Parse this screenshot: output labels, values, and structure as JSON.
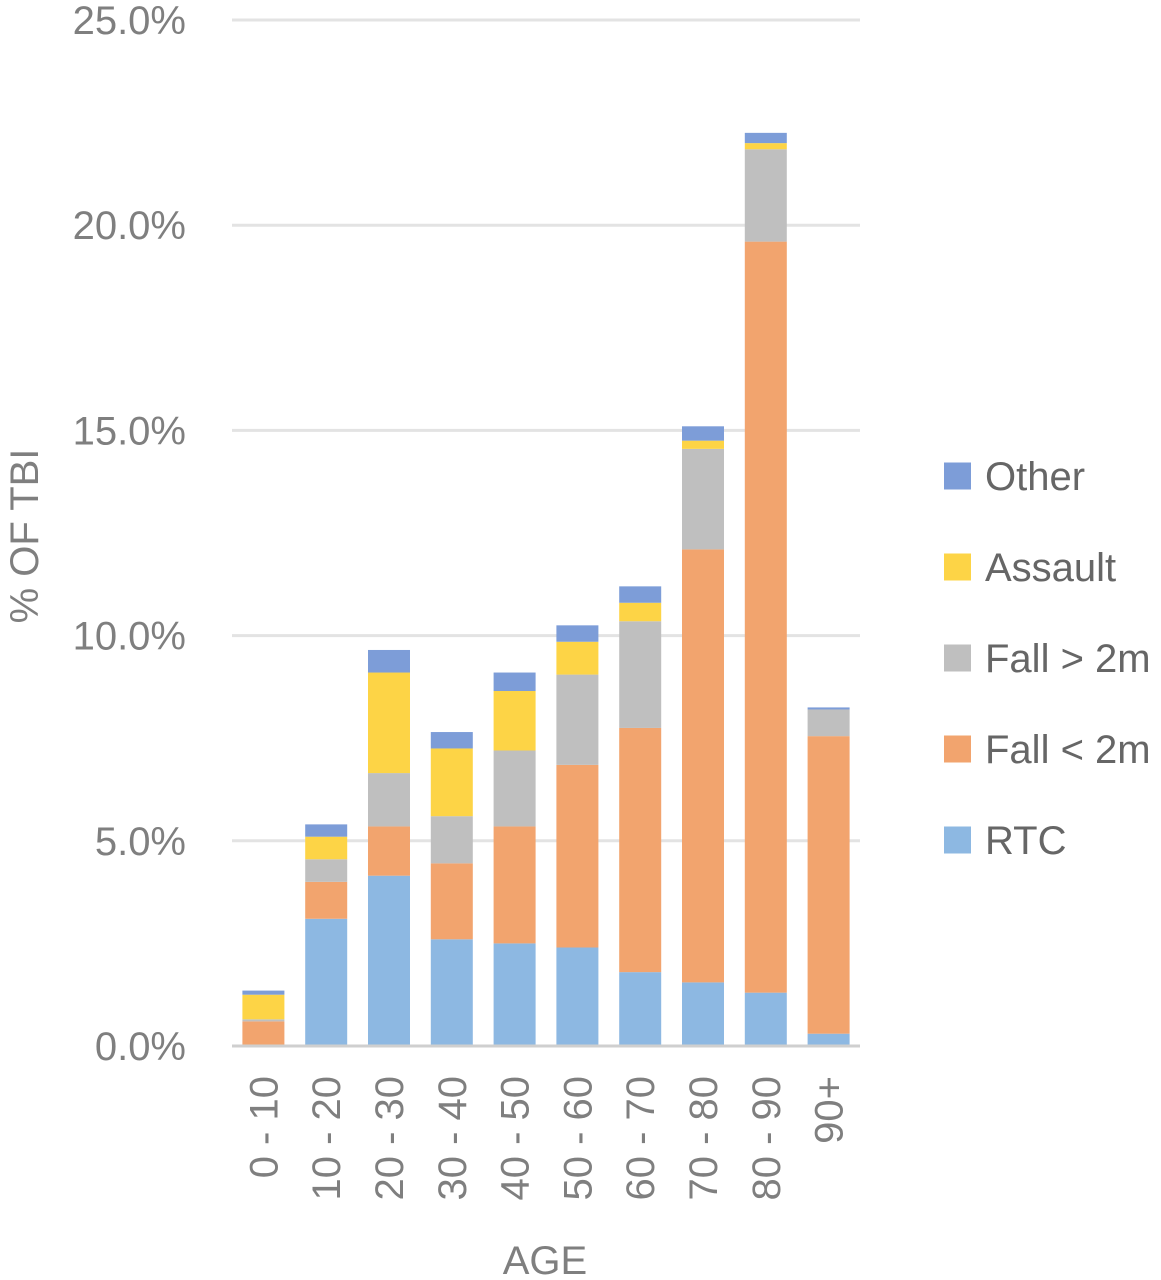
{
  "chart_data": {
    "type": "bar",
    "stacked": true,
    "title": "",
    "xlabel": "AGE",
    "ylabel": "% OF TBI",
    "ylim": [
      0,
      25
    ],
    "y_ticks": [
      "0.0%",
      "5.0%",
      "10.0%",
      "15.0%",
      "20.0%",
      "25.0%"
    ],
    "y_tick_values": [
      0,
      5,
      10,
      15,
      20,
      25
    ],
    "grid": true,
    "legend_position": "right",
    "categories": [
      "0 - 10",
      "10 - 20",
      "20 - 30",
      "30 - 40",
      "40 - 50",
      "50 - 60",
      "60 - 70",
      "70 - 80",
      "80 - 90",
      "90+"
    ],
    "series": [
      {
        "name": "RTC",
        "color": "#8DB8E2",
        "values": [
          0.0,
          3.1,
          4.15,
          2.6,
          2.5,
          2.4,
          1.8,
          1.55,
          1.3,
          0.3
        ]
      },
      {
        "name": "Fall < 2m",
        "color": "#F2A46E",
        "values": [
          0.6,
          0.9,
          1.2,
          1.85,
          2.85,
          4.45,
          5.95,
          10.55,
          18.3,
          7.25
        ]
      },
      {
        "name": "Fall > 2m",
        "color": "#BFBFBF",
        "values": [
          0.05,
          0.55,
          1.3,
          1.15,
          1.85,
          2.2,
          2.6,
          2.45,
          2.25,
          0.65
        ]
      },
      {
        "name": "Assault",
        "color": "#FDD446",
        "values": [
          0.6,
          0.55,
          2.45,
          1.65,
          1.45,
          0.8,
          0.45,
          0.2,
          0.15,
          0.0
        ]
      },
      {
        "name": "Other",
        "color": "#7D9DD8",
        "values": [
          0.1,
          0.3,
          0.55,
          0.4,
          0.45,
          0.4,
          0.4,
          0.35,
          0.25,
          0.05
        ]
      }
    ],
    "legend_order": [
      "Other",
      "Assault",
      "Fall > 2m",
      "Fall < 2m",
      "RTC"
    ]
  }
}
